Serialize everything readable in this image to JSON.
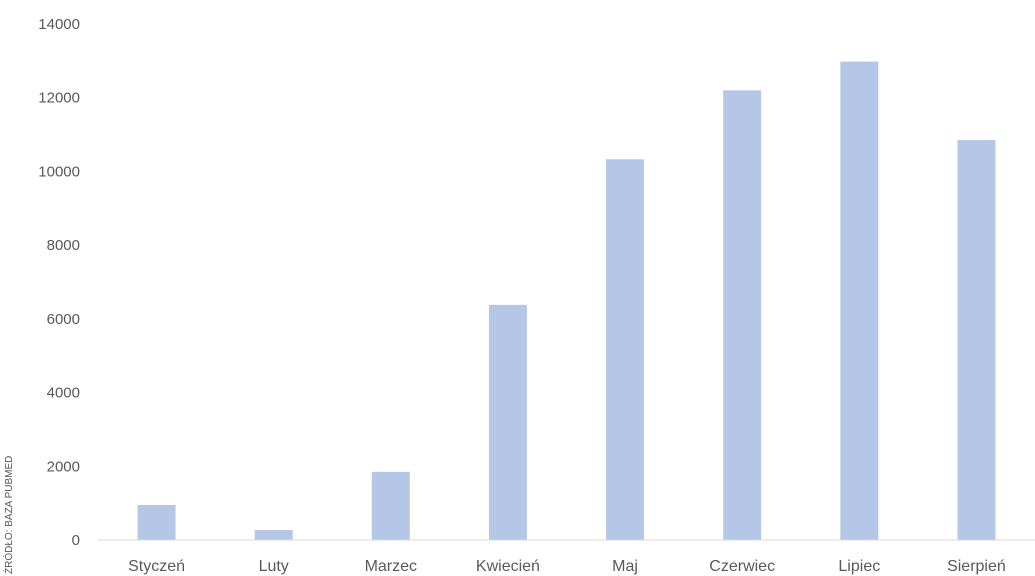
{
  "source_note": "ŹRÓDŁO: BAZA PUBMED",
  "chart_data": {
    "type": "bar",
    "title": "",
    "xlabel": "",
    "ylabel": "",
    "categories": [
      "Styczeń",
      "Luty",
      "Marzec",
      "Kwiecień",
      "Maj",
      "Czerwiec",
      "Lipiec",
      "Sierpień"
    ],
    "values": [
      950,
      270,
      1850,
      6380,
      10330,
      12200,
      12980,
      10850
    ],
    "ylim": [
      0,
      14000
    ],
    "yticks": [
      0,
      2000,
      4000,
      6000,
      8000,
      10000,
      12000,
      14000
    ],
    "grid": false,
    "legend": "none",
    "bar_color": "#b4c7e7",
    "axis_color": "#d9d9d9"
  }
}
